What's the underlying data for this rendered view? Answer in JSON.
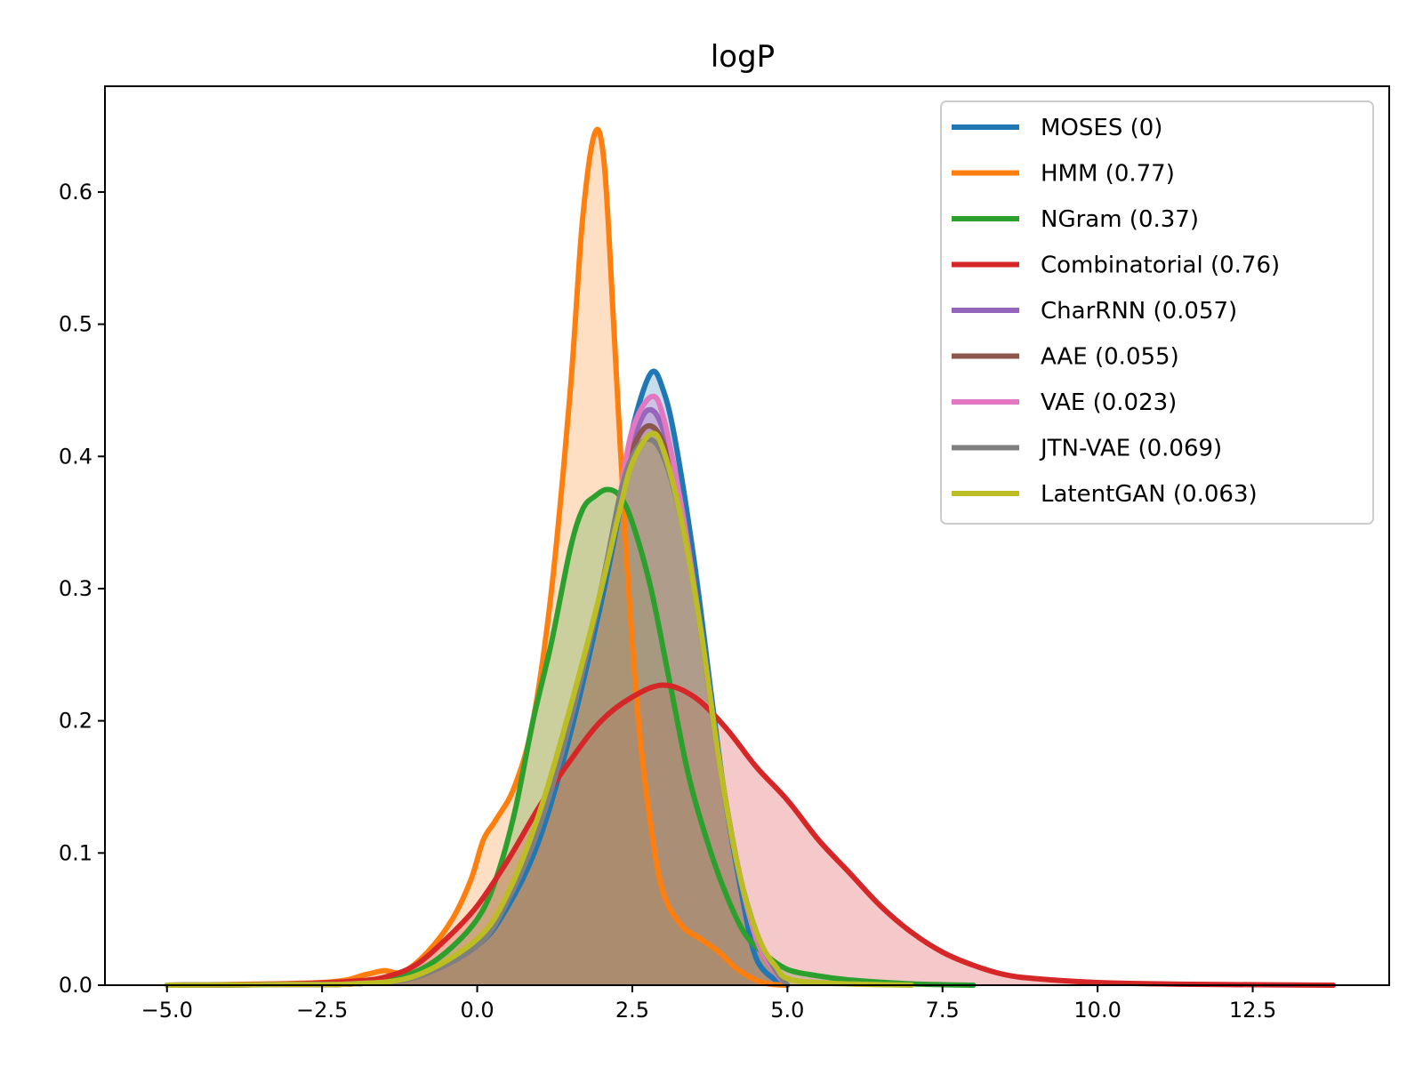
{
  "chart_data": {
    "type": "area",
    "title": "logP",
    "xlabel": "",
    "ylabel": "",
    "xlim": [
      -6.0,
      14.7
    ],
    "ylim": [
      0,
      0.68
    ],
    "xticks": [
      -5.0,
      -2.5,
      0.0,
      2.5,
      5.0,
      7.5,
      10.0,
      12.5
    ],
    "xtick_labels": [
      "−5.0",
      "−2.5",
      "0.0",
      "2.5",
      "5.0",
      "7.5",
      "10.0",
      "12.5"
    ],
    "yticks": [
      0.0,
      0.1,
      0.2,
      0.3,
      0.4,
      0.5,
      0.6
    ],
    "ytick_labels": [
      "0.0",
      "0.1",
      "0.2",
      "0.3",
      "0.4",
      "0.5",
      "0.6"
    ],
    "legend_position": "top-right",
    "series": [
      {
        "name": "MOSES (0)",
        "color": "#1f77b4",
        "points": [
          [
            -5.0,
            0.0
          ],
          [
            -3.0,
            0.0005
          ],
          [
            -2.0,
            0.001
          ],
          [
            -1.0,
            0.006
          ],
          [
            0.0,
            0.03
          ],
          [
            0.5,
            0.06
          ],
          [
            1.0,
            0.11
          ],
          [
            1.5,
            0.19
          ],
          [
            2.0,
            0.29
          ],
          [
            2.3,
            0.36
          ],
          [
            2.5,
            0.42
          ],
          [
            2.8,
            0.463
          ],
          [
            3.0,
            0.45
          ],
          [
            3.2,
            0.41
          ],
          [
            3.5,
            0.32
          ],
          [
            3.8,
            0.21
          ],
          [
            4.0,
            0.14
          ],
          [
            4.3,
            0.06
          ],
          [
            4.5,
            0.02
          ],
          [
            4.8,
            0.004
          ],
          [
            5.0,
            0.0
          ]
        ]
      },
      {
        "name": "HMM (0.77)",
        "color": "#ff7f0e",
        "points": [
          [
            -5.0,
            0.0
          ],
          [
            -2.5,
            0.002
          ],
          [
            -1.8,
            0.008
          ],
          [
            -1.5,
            0.011
          ],
          [
            -1.2,
            0.01
          ],
          [
            -0.8,
            0.025
          ],
          [
            -0.4,
            0.05
          ],
          [
            -0.1,
            0.08
          ],
          [
            0.1,
            0.11
          ],
          [
            0.3,
            0.125
          ],
          [
            0.6,
            0.15
          ],
          [
            0.9,
            0.2
          ],
          [
            1.2,
            0.3
          ],
          [
            1.5,
            0.45
          ],
          [
            1.7,
            0.58
          ],
          [
            1.9,
            0.645
          ],
          [
            2.05,
            0.62
          ],
          [
            2.2,
            0.5
          ],
          [
            2.4,
            0.33
          ],
          [
            2.6,
            0.2
          ],
          [
            2.8,
            0.12
          ],
          [
            3.0,
            0.07
          ],
          [
            3.3,
            0.045
          ],
          [
            3.6,
            0.035
          ],
          [
            3.9,
            0.025
          ],
          [
            4.2,
            0.012
          ],
          [
            4.6,
            0.002
          ],
          [
            5.0,
            0.0
          ]
        ]
      },
      {
        "name": "NGram (0.37)",
        "color": "#2ca02c",
        "points": [
          [
            -5.0,
            0.0
          ],
          [
            -2.5,
            0.001
          ],
          [
            -1.5,
            0.005
          ],
          [
            -1.0,
            0.01
          ],
          [
            -0.5,
            0.025
          ],
          [
            0.0,
            0.05
          ],
          [
            0.3,
            0.08
          ],
          [
            0.6,
            0.13
          ],
          [
            0.9,
            0.2
          ],
          [
            1.2,
            0.26
          ],
          [
            1.5,
            0.33
          ],
          [
            1.7,
            0.36
          ],
          [
            1.9,
            0.37
          ],
          [
            2.1,
            0.375
          ],
          [
            2.3,
            0.37
          ],
          [
            2.5,
            0.35
          ],
          [
            2.8,
            0.3
          ],
          [
            3.1,
            0.23
          ],
          [
            3.4,
            0.16
          ],
          [
            3.7,
            0.11
          ],
          [
            4.0,
            0.07
          ],
          [
            4.3,
            0.04
          ],
          [
            4.6,
            0.025
          ],
          [
            5.0,
            0.012
          ],
          [
            5.5,
            0.007
          ],
          [
            6.0,
            0.004
          ],
          [
            7.0,
            0.001
          ],
          [
            8.0,
            0.0
          ]
        ]
      },
      {
        "name": "Combinatorial (0.76)",
        "color": "#d62728",
        "points": [
          [
            -5.0,
            0.0
          ],
          [
            -3.0,
            0.001
          ],
          [
            -2.0,
            0.003
          ],
          [
            -1.5,
            0.006
          ],
          [
            -1.0,
            0.015
          ],
          [
            -0.5,
            0.035
          ],
          [
            0.0,
            0.06
          ],
          [
            0.5,
            0.095
          ],
          [
            1.0,
            0.135
          ],
          [
            1.5,
            0.17
          ],
          [
            2.0,
            0.2
          ],
          [
            2.5,
            0.218
          ],
          [
            3.0,
            0.227
          ],
          [
            3.5,
            0.218
          ],
          [
            4.0,
            0.195
          ],
          [
            4.5,
            0.165
          ],
          [
            5.0,
            0.14
          ],
          [
            5.5,
            0.11
          ],
          [
            6.0,
            0.085
          ],
          [
            6.5,
            0.06
          ],
          [
            7.0,
            0.04
          ],
          [
            7.5,
            0.025
          ],
          [
            8.0,
            0.015
          ],
          [
            8.5,
            0.008
          ],
          [
            9.0,
            0.005
          ],
          [
            10.0,
            0.002
          ],
          [
            11.0,
            0.001
          ],
          [
            12.0,
            0.0005
          ],
          [
            13.8,
            0.0
          ]
        ]
      },
      {
        "name": "CharRNN (0.057)",
        "color": "#9467bd",
        "points": [
          [
            -5.0,
            0.0
          ],
          [
            -3.0,
            0.0005
          ],
          [
            -2.0,
            0.001
          ],
          [
            -1.0,
            0.006
          ],
          [
            0.0,
            0.03
          ],
          [
            0.5,
            0.065
          ],
          [
            1.0,
            0.12
          ],
          [
            1.5,
            0.2
          ],
          [
            2.0,
            0.3
          ],
          [
            2.3,
            0.37
          ],
          [
            2.5,
            0.41
          ],
          [
            2.75,
            0.435
          ],
          [
            3.0,
            0.42
          ],
          [
            3.3,
            0.36
          ],
          [
            3.6,
            0.27
          ],
          [
            3.9,
            0.17
          ],
          [
            4.2,
            0.09
          ],
          [
            4.5,
            0.035
          ],
          [
            4.8,
            0.01
          ],
          [
            5.0,
            0.0
          ]
        ]
      },
      {
        "name": "AAE (0.055)",
        "color": "#8c564b",
        "points": [
          [
            -5.0,
            0.0
          ],
          [
            -3.0,
            0.0005
          ],
          [
            -2.0,
            0.001
          ],
          [
            -1.0,
            0.006
          ],
          [
            0.0,
            0.03
          ],
          [
            0.5,
            0.065
          ],
          [
            1.0,
            0.12
          ],
          [
            1.5,
            0.2
          ],
          [
            2.0,
            0.3
          ],
          [
            2.3,
            0.37
          ],
          [
            2.5,
            0.405
          ],
          [
            2.75,
            0.423
          ],
          [
            3.0,
            0.41
          ],
          [
            3.3,
            0.36
          ],
          [
            3.6,
            0.27
          ],
          [
            3.9,
            0.17
          ],
          [
            4.2,
            0.09
          ],
          [
            4.5,
            0.035
          ],
          [
            4.8,
            0.01
          ],
          [
            5.0,
            0.0
          ]
        ]
      },
      {
        "name": "VAE (0.023)",
        "color": "#e377c2",
        "points": [
          [
            -5.0,
            0.0
          ],
          [
            -3.0,
            0.0005
          ],
          [
            -2.0,
            0.001
          ],
          [
            -1.0,
            0.006
          ],
          [
            0.0,
            0.03
          ],
          [
            0.5,
            0.065
          ],
          [
            1.0,
            0.12
          ],
          [
            1.5,
            0.2
          ],
          [
            2.0,
            0.3
          ],
          [
            2.3,
            0.37
          ],
          [
            2.5,
            0.42
          ],
          [
            2.8,
            0.445
          ],
          [
            3.0,
            0.43
          ],
          [
            3.3,
            0.36
          ],
          [
            3.6,
            0.27
          ],
          [
            3.9,
            0.17
          ],
          [
            4.2,
            0.09
          ],
          [
            4.5,
            0.035
          ],
          [
            4.8,
            0.01
          ],
          [
            5.0,
            0.0
          ]
        ]
      },
      {
        "name": "JTN-VAE (0.069)",
        "color": "#7f7f7f",
        "points": [
          [
            -5.0,
            0.0
          ],
          [
            -3.0,
            0.0005
          ],
          [
            -2.0,
            0.001
          ],
          [
            -1.0,
            0.006
          ],
          [
            0.0,
            0.03
          ],
          [
            0.5,
            0.065
          ],
          [
            1.0,
            0.12
          ],
          [
            1.5,
            0.2
          ],
          [
            2.0,
            0.3
          ],
          [
            2.3,
            0.37
          ],
          [
            2.5,
            0.4
          ],
          [
            2.75,
            0.413
          ],
          [
            3.0,
            0.4
          ],
          [
            3.3,
            0.35
          ],
          [
            3.6,
            0.27
          ],
          [
            3.9,
            0.17
          ],
          [
            4.2,
            0.09
          ],
          [
            4.5,
            0.04
          ],
          [
            4.8,
            0.012
          ],
          [
            5.0,
            0.0
          ]
        ]
      },
      {
        "name": "LatentGAN (0.063)",
        "color": "#bcbd22",
        "points": [
          [
            -5.0,
            0.0
          ],
          [
            -3.0,
            0.0005
          ],
          [
            -2.0,
            0.001
          ],
          [
            -1.0,
            0.007
          ],
          [
            0.0,
            0.035
          ],
          [
            0.5,
            0.07
          ],
          [
            1.0,
            0.13
          ],
          [
            1.5,
            0.21
          ],
          [
            2.0,
            0.3
          ],
          [
            2.3,
            0.36
          ],
          [
            2.5,
            0.395
          ],
          [
            2.8,
            0.417
          ],
          [
            3.0,
            0.405
          ],
          [
            3.3,
            0.35
          ],
          [
            3.6,
            0.27
          ],
          [
            3.9,
            0.17
          ],
          [
            4.2,
            0.09
          ],
          [
            4.5,
            0.04
          ],
          [
            4.8,
            0.015
          ],
          [
            5.2,
            0.003
          ],
          [
            7.0,
            0.0
          ]
        ]
      }
    ]
  }
}
